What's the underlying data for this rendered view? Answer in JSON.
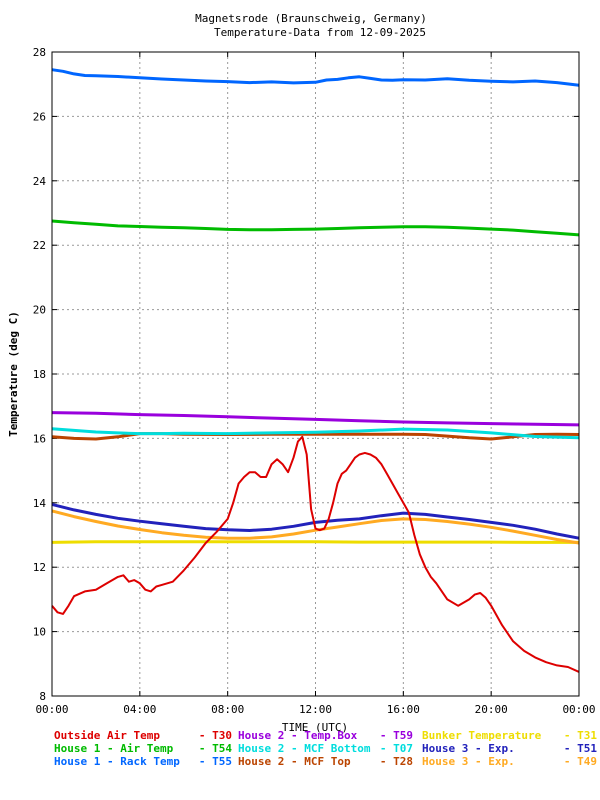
{
  "chart_data": {
    "type": "line",
    "title": "Magnetsrode (Braunschweig, Germany)",
    "subtitle": "Temperature-Data from 12-09-2025",
    "xlabel": "TIME (UTC)",
    "ylabel": "Temperature (deg C)",
    "xlim": [
      0,
      24
    ],
    "ylim": [
      8,
      28
    ],
    "x_ticks": [
      {
        "v": 0,
        "label": "00:00"
      },
      {
        "v": 4,
        "label": "04:00"
      },
      {
        "v": 8,
        "label": "08:00"
      },
      {
        "v": 12,
        "label": "12:00"
      },
      {
        "v": 16,
        "label": "16:00"
      },
      {
        "v": 20,
        "label": "20:00"
      },
      {
        "v": 24,
        "label": "00:00"
      }
    ],
    "y_ticks": [
      8,
      10,
      12,
      14,
      16,
      18,
      20,
      22,
      24,
      26,
      28
    ],
    "grid": true,
    "legend_position": "bottom",
    "series": [
      {
        "name": "Outside Air Temp",
        "code": "T30",
        "color": "#dd0000",
        "x": [
          0,
          0.25,
          0.5,
          0.75,
          1,
          1.5,
          2,
          2.5,
          3,
          3.25,
          3.5,
          3.75,
          4,
          4.25,
          4.5,
          4.75,
          5,
          5.5,
          6,
          6.5,
          7,
          7.5,
          8,
          8.25,
          8.5,
          8.75,
          9,
          9.25,
          9.5,
          9.75,
          10,
          10.25,
          10.5,
          10.75,
          11,
          11.2,
          11.4,
          11.6,
          11.8,
          12,
          12.2,
          12.4,
          12.6,
          12.8,
          13,
          13.2,
          13.4,
          13.6,
          13.8,
          14,
          14.25,
          14.5,
          14.75,
          15,
          15.25,
          15.5,
          15.75,
          16,
          16.25,
          16.5,
          16.75,
          17,
          17.25,
          17.5,
          18,
          18.5,
          19,
          19.25,
          19.5,
          19.75,
          20,
          20.5,
          21,
          21.5,
          22,
          22.5,
          23,
          23.5,
          24
        ],
        "y": [
          10.8,
          10.6,
          10.55,
          10.8,
          11.1,
          11.25,
          11.3,
          11.5,
          11.7,
          11.75,
          11.55,
          11.6,
          11.5,
          11.3,
          11.25,
          11.4,
          11.45,
          11.55,
          11.9,
          12.3,
          12.75,
          13.1,
          13.5,
          14.0,
          14.6,
          14.8,
          14.95,
          14.95,
          14.8,
          14.8,
          15.2,
          15.35,
          15.2,
          14.95,
          15.4,
          15.9,
          16.05,
          15.5,
          13.8,
          13.2,
          13.15,
          13.2,
          13.5,
          14.0,
          14.6,
          14.9,
          15.0,
          15.2,
          15.4,
          15.5,
          15.55,
          15.5,
          15.4,
          15.2,
          14.9,
          14.6,
          14.3,
          14.0,
          13.7,
          13.0,
          12.4,
          12.0,
          11.7,
          11.5,
          11.0,
          10.8,
          11.0,
          11.15,
          11.2,
          11.05,
          10.8,
          10.2,
          9.7,
          9.4,
          9.2,
          9.05,
          8.95,
          8.9,
          8.75
        ]
      },
      {
        "name": "House 1 - Air  Temp",
        "code": "T54",
        "color": "#00bb00",
        "x": [
          0,
          1,
          2,
          3,
          4,
          5,
          6,
          7,
          8,
          9,
          10,
          11,
          12,
          13,
          14,
          15,
          16,
          17,
          18,
          19,
          20,
          21,
          22,
          23,
          24
        ],
        "y": [
          22.75,
          22.7,
          22.65,
          22.6,
          22.58,
          22.56,
          22.54,
          22.52,
          22.49,
          22.48,
          22.48,
          22.49,
          22.5,
          22.52,
          22.54,
          22.56,
          22.57,
          22.57,
          22.56,
          22.53,
          22.5,
          22.47,
          22.42,
          22.37,
          22.32
        ]
      },
      {
        "name": "House 1 - Rack Temp",
        "code": "T55",
        "color": "#0066ff",
        "x": [
          0,
          0.5,
          1,
          1.5,
          2,
          3,
          4,
          5,
          6,
          7,
          8,
          9,
          10,
          11,
          12,
          12.5,
          13,
          13.5,
          14,
          14.5,
          15,
          15.5,
          16,
          17,
          18,
          19,
          20,
          21,
          22,
          23,
          24
        ],
        "y": [
          27.45,
          27.4,
          27.32,
          27.27,
          27.26,
          27.24,
          27.2,
          27.16,
          27.13,
          27.1,
          27.08,
          27.05,
          27.07,
          27.04,
          27.06,
          27.13,
          27.15,
          27.2,
          27.23,
          27.18,
          27.13,
          27.12,
          27.14,
          27.13,
          27.17,
          27.12,
          27.09,
          27.07,
          27.1,
          27.05,
          26.97
        ]
      },
      {
        "name": "House 2 - Temp.Box",
        "code": "T59",
        "color": "#9900dd",
        "x": [
          0,
          2,
          4,
          6,
          8,
          10,
          12,
          14,
          16,
          18,
          20,
          22,
          24
        ],
        "y": [
          16.8,
          16.78,
          16.74,
          16.71,
          16.67,
          16.63,
          16.59,
          16.55,
          16.51,
          16.48,
          16.46,
          16.44,
          16.42
        ]
      },
      {
        "name": "House 2 - MCF Bottom",
        "code": "T07",
        "color": "#00dddd",
        "x": [
          0,
          1,
          2,
          3,
          4,
          5,
          6,
          8,
          10,
          12,
          14,
          16,
          18,
          20,
          22,
          24
        ],
        "y": [
          16.3,
          16.25,
          16.2,
          16.17,
          16.15,
          16.15,
          16.16,
          16.15,
          16.17,
          16.19,
          16.23,
          16.29,
          16.26,
          16.17,
          16.06,
          16.02
        ]
      },
      {
        "name": "House 2 - MCF Top",
        "code": "T28",
        "color": "#bb4400",
        "x": [
          0,
          1,
          2,
          3,
          4,
          5,
          6,
          8,
          10,
          12,
          14,
          16,
          17,
          18,
          19,
          20,
          21,
          22,
          23,
          24
        ],
        "y": [
          16.05,
          16.0,
          15.98,
          16.05,
          16.15,
          16.15,
          16.13,
          16.12,
          16.13,
          16.13,
          16.13,
          16.13,
          16.12,
          16.07,
          16.02,
          15.98,
          16.05,
          16.12,
          16.13,
          16.12
        ]
      },
      {
        "name": "House 3 - Exp.",
        "code": "T51",
        "color": "#2222bb",
        "x": [
          0,
          1,
          2,
          3,
          4,
          5,
          6,
          7,
          8,
          9,
          10,
          11,
          12,
          13,
          14,
          15,
          16,
          17,
          18,
          19,
          20,
          21,
          22,
          23,
          24
        ],
        "y": [
          13.95,
          13.78,
          13.64,
          13.52,
          13.43,
          13.35,
          13.27,
          13.2,
          13.16,
          13.14,
          13.18,
          13.27,
          13.39,
          13.46,
          13.5,
          13.6,
          13.68,
          13.64,
          13.56,
          13.48,
          13.39,
          13.3,
          13.18,
          13.03,
          12.9
        ]
      },
      {
        "name": "House 3 - Exp.",
        "code": "T49",
        "color": "#ffaa22",
        "x": [
          0,
          1,
          2,
          3,
          4,
          5,
          6,
          7,
          8,
          9,
          10,
          11,
          12,
          13,
          14,
          15,
          16,
          17,
          18,
          19,
          20,
          21,
          22,
          23,
          24
        ],
        "y": [
          13.75,
          13.57,
          13.42,
          13.28,
          13.17,
          13.07,
          12.99,
          12.93,
          12.9,
          12.9,
          12.94,
          13.03,
          13.15,
          13.25,
          13.35,
          13.45,
          13.5,
          13.48,
          13.42,
          13.34,
          13.24,
          13.12,
          12.99,
          12.86,
          12.75
        ]
      },
      {
        "name": "Bunker Temperature",
        "code": "T31",
        "color": "#eedd00",
        "x": [
          0,
          2,
          4,
          6,
          8,
          10,
          12,
          14,
          16,
          18,
          20,
          22,
          24
        ],
        "y": [
          12.77,
          12.79,
          12.79,
          12.79,
          12.79,
          12.79,
          12.79,
          12.78,
          12.78,
          12.78,
          12.78,
          12.77,
          12.77
        ]
      }
    ],
    "legend_rows": [
      [
        {
          "name": "Outside Air Temp",
          "code": "T30",
          "color": "#dd0000"
        },
        {
          "name": "House 2 - Temp.Box",
          "code": "T59",
          "color": "#9900dd"
        },
        {
          "name": "Bunker Temperature",
          "code": "T31",
          "color": "#eedd00"
        }
      ],
      [
        {
          "name": "House 1 - Air  Temp",
          "code": "T54",
          "color": "#00bb00"
        },
        {
          "name": "House 2 - MCF Bottom",
          "code": "T07",
          "color": "#00dddd"
        },
        {
          "name": "House 3 - Exp.",
          "code": "T51",
          "color": "#2222bb"
        }
      ],
      [
        {
          "name": "House 1 - Rack Temp",
          "code": "T55",
          "color": "#0066ff"
        },
        {
          "name": "House 2 - MCF Top",
          "code": "T28",
          "color": "#bb4400"
        },
        {
          "name": "House 3 - Exp.",
          "code": "T49",
          "color": "#ffaa22"
        }
      ]
    ]
  }
}
